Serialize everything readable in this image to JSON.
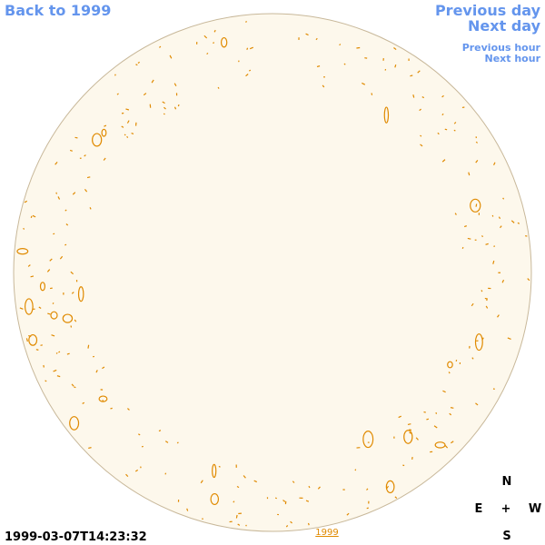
{
  "nav": {
    "back": "Back to 1999",
    "previous_day": "Previous day",
    "next_day": "Next day",
    "previous_hour": "Previous hour",
    "next_hour": "Next hour"
  },
  "timestamp": "1999-03-07T14:23:32",
  "year_link": "1999",
  "compass": {
    "north": "N",
    "east": "E",
    "center": "+",
    "west": "W",
    "south": "S"
  }
}
